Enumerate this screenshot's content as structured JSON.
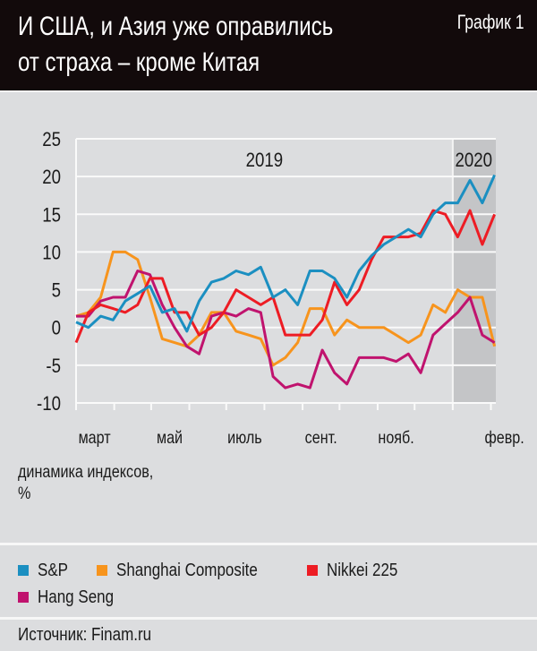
{
  "header": {
    "title_line1": "И США, и Азия уже оправились",
    "title_line2": "от страха – кроме Китая",
    "chart_number": "График 1"
  },
  "chart_data": {
    "type": "line",
    "title": "И США, и Азия уже оправились от страха – кроме Китая",
    "ylabel": "динамика индексов, %",
    "ylim": [
      -10,
      25
    ],
    "yticks": [
      "25",
      "20",
      "15",
      "10",
      "5",
      "0",
      "-5",
      "-10"
    ],
    "ytick_values": [
      25,
      20,
      15,
      10,
      5,
      0,
      -5,
      -10
    ],
    "xlim": [
      "2019-03-01",
      "2020-02-05"
    ],
    "month_labels": [
      {
        "label": "март",
        "date": "2019-03-16"
      },
      {
        "label": "май",
        "date": "2019-05-16"
      },
      {
        "label": "июль",
        "date": "2019-07-16"
      },
      {
        "label": "сент.",
        "date": "2019-09-16"
      },
      {
        "label": "нояб.",
        "date": "2019-11-16"
      },
      {
        "label": "февр.",
        "date": "2020-02-12"
      }
    ],
    "year_labels": [
      {
        "label": "2019",
        "date": "2019-08-01"
      },
      {
        "label": "2020",
        "date": "2020-01-18"
      }
    ],
    "shaded_region": {
      "from": "2020-01-01",
      "to": "2020-02-05",
      "color": "#c4c5c7"
    },
    "grid": true,
    "legend_position": "bottom",
    "x": [
      "2019-03-01",
      "2019-03-11",
      "2019-03-21",
      "2019-03-31",
      "2019-04-10",
      "2019-04-20",
      "2019-04-30",
      "2019-05-10",
      "2019-05-20",
      "2019-05-30",
      "2019-06-09",
      "2019-06-19",
      "2019-06-29",
      "2019-07-09",
      "2019-07-19",
      "2019-07-29",
      "2019-08-08",
      "2019-08-18",
      "2019-08-28",
      "2019-09-07",
      "2019-09-17",
      "2019-09-27",
      "2019-10-07",
      "2019-10-17",
      "2019-10-27",
      "2019-11-06",
      "2019-11-16",
      "2019-11-26",
      "2019-12-06",
      "2019-12-16",
      "2019-12-26",
      "2020-01-05",
      "2020-01-15",
      "2020-01-25",
      "2020-02-04"
    ],
    "series": [
      {
        "name": "S&P",
        "color": "#1b8fc1",
        "values": [
          0.7,
          0,
          1.5,
          1,
          3.5,
          4.5,
          5.5,
          2,
          2.5,
          -0.5,
          3.5,
          6,
          6.5,
          7.5,
          7,
          8,
          4,
          5,
          3,
          7.5,
          7.5,
          6.5,
          4,
          7.5,
          9.5,
          11,
          12,
          13,
          12,
          15,
          16.5,
          16.5,
          19.5,
          16.5,
          20.2
        ]
      },
      {
        "name": "Shanghai Composite",
        "color": "#f7941d",
        "values": [
          1.5,
          2,
          4,
          10,
          10,
          9,
          4,
          -1.5,
          -2,
          -2.5,
          -1,
          2,
          2,
          -0.5,
          -1,
          -1.5,
          -5,
          -4,
          -2,
          2.5,
          2.5,
          -1,
          1,
          0,
          0,
          0,
          -1,
          -2,
          -1,
          3,
          2,
          5,
          4,
          4,
          -2.5
        ]
      },
      {
        "name": "Nikkei 225",
        "color": "#ed1c24",
        "values": [
          -2,
          2,
          3,
          2.5,
          2,
          3,
          6.5,
          6.5,
          2,
          2,
          -1,
          0,
          2,
          5,
          4,
          3,
          4,
          -1,
          -1,
          -1,
          1,
          6,
          3,
          5,
          9,
          12,
          12,
          12,
          12.5,
          15.5,
          15,
          12,
          15.5,
          11,
          15
        ]
      },
      {
        "name": "Hang Seng",
        "color": "#c0136e",
        "values": [
          1.5,
          1.5,
          3.5,
          4,
          4,
          7.5,
          7,
          3,
          0,
          -2.5,
          -3.5,
          1.5,
          2,
          1.5,
          2.5,
          2,
          -6.5,
          -8,
          -7.5,
          -8,
          -3,
          -6,
          -7.5,
          -4,
          -4,
          -4,
          -4.5,
          -3.5,
          -6,
          -1,
          0.5,
          2,
          4,
          -1,
          -2
        ]
      }
    ]
  },
  "axis_caption": {
    "line1": "динамика индексов,",
    "line2": "%"
  },
  "legend": [
    {
      "label": "S&P",
      "color": "#1b8fc1"
    },
    {
      "label": "Shanghai Composite",
      "color": "#f7941d"
    },
    {
      "label": "Nikkei 225",
      "color": "#ed1c24"
    },
    {
      "label": "Hang Seng",
      "color": "#c0136e"
    }
  ],
  "source": "Источник: Finam.ru"
}
